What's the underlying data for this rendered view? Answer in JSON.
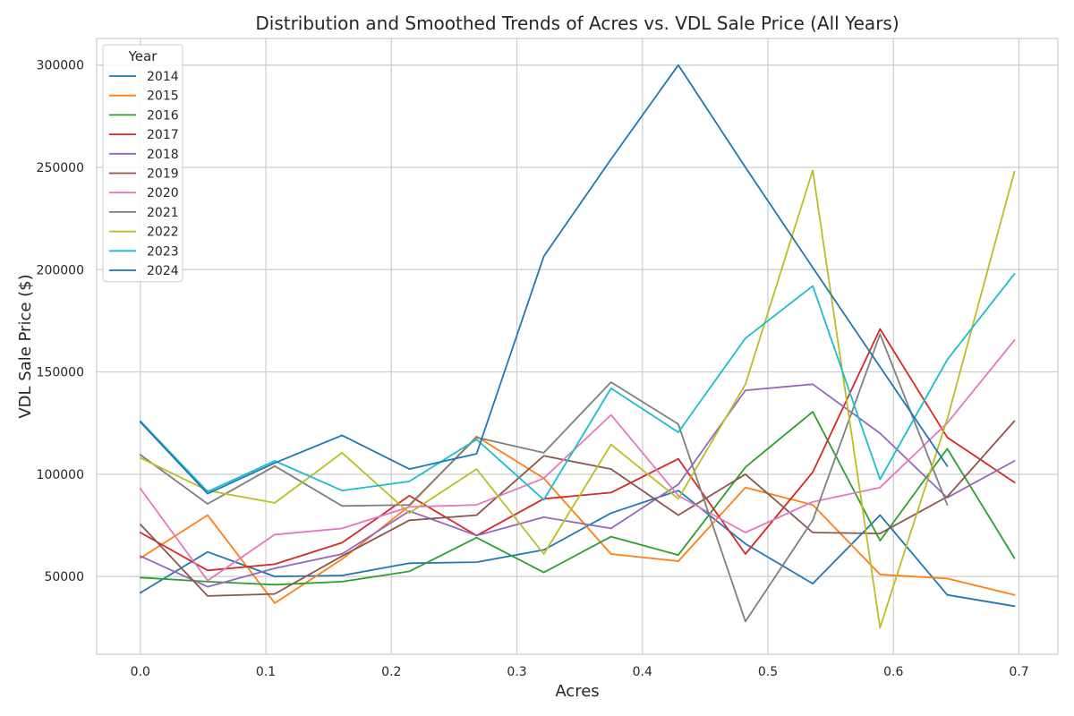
{
  "chart_data": {
    "type": "line",
    "title": "Distribution and Smoothed Trends of Acres vs. VDL Sale Price (All Years)",
    "xlabel": "Acres",
    "ylabel": "VDL Sale Price ($)",
    "xlim": [
      -0.0348,
      0.731
    ],
    "ylim": [
      12000,
      313000
    ],
    "grid": true,
    "x_ticks": [
      0.0,
      0.1,
      0.2,
      0.3,
      0.4,
      0.5,
      0.6,
      0.7
    ],
    "x_tick_labels": [
      "0.0",
      "0.1",
      "0.2",
      "0.3",
      "0.4",
      "0.5",
      "0.6",
      "0.7"
    ],
    "y_ticks": [
      50000,
      100000,
      150000,
      200000,
      250000,
      300000
    ],
    "y_tick_labels": [
      "50000",
      "100000",
      "150000",
      "200000",
      "250000",
      "300000"
    ],
    "x": [
      0.0,
      0.0536,
      0.1071,
      0.1607,
      0.2143,
      0.2679,
      0.3214,
      0.375,
      0.4286,
      0.4821,
      0.5357,
      0.5893,
      0.6429,
      0.6964
    ],
    "legend": {
      "title": "Year",
      "placement": "upper-left"
    },
    "series": [
      {
        "name": "2014",
        "color": "#1f77b4",
        "values": [
          42000,
          62000,
          50000,
          50500,
          56500,
          57000,
          63000,
          81000,
          92000,
          66000,
          46500,
          80000,
          41000,
          35500
        ]
      },
      {
        "name": "2015",
        "color": "#ff7f0e",
        "values": [
          59000,
          80000,
          37000,
          58500,
          84500,
          118500,
          98000,
          61000,
          57500,
          93500,
          85000,
          51000,
          49000,
          41000
        ]
      },
      {
        "name": "2016",
        "color": "#2ca02c",
        "values": [
          49500,
          47500,
          46000,
          47500,
          52500,
          69000,
          52000,
          69500,
          60500,
          103500,
          130500,
          67500,
          112500,
          59000
        ]
      },
      {
        "name": "2017",
        "color": "#d62728",
        "values": [
          71500,
          53000,
          56000,
          66500,
          89500,
          70000,
          88000,
          91000,
          107500,
          61000,
          101000,
          171000,
          118000,
          96000
        ]
      },
      {
        "name": "2018",
        "color": "#9467bd",
        "values": [
          60000,
          45000,
          54000,
          61000,
          82000,
          70000,
          79000,
          73500,
          95000,
          141000,
          144000,
          120000,
          88500,
          106500
        ]
      },
      {
        "name": "2019",
        "color": "#8c564b",
        "values": [
          75500,
          40500,
          41500,
          60000,
          77500,
          80000,
          109000,
          102500,
          80000,
          100000,
          71500,
          71000,
          89000,
          126000
        ]
      },
      {
        "name": "2020",
        "color": "#e377c2",
        "values": [
          93000,
          48000,
          70500,
          73500,
          84000,
          85000,
          98000,
          129000,
          89500,
          71500,
          86500,
          93500,
          125000,
          165500
        ]
      },
      {
        "name": "2021",
        "color": "#7f7f7f",
        "values": [
          109500,
          85500,
          104000,
          84500,
          85000,
          118000,
          110500,
          145000,
          124500,
          28000,
          77500,
          168500,
          85000,
          null
        ]
      },
      {
        "name": "2022",
        "color": "#bcbd22",
        "values": [
          108000,
          92000,
          86000,
          110500,
          81000,
          102500,
          61000,
          114500,
          88000,
          144000,
          248500,
          25000,
          127000,
          248000
        ]
      },
      {
        "name": "2023",
        "color": "#17becf",
        "values": [
          126000,
          91500,
          106500,
          92000,
          96500,
          117000,
          87500,
          142000,
          120500,
          166500,
          192000,
          97500,
          156000,
          198000
        ]
      },
      {
        "name": "2024",
        "color": "#1f77b4",
        "values": [
          125500,
          90500,
          105500,
          119000,
          102500,
          110000,
          206500,
          254000,
          300000,
          250000,
          201000,
          152500,
          104000,
          null
        ]
      }
    ]
  }
}
